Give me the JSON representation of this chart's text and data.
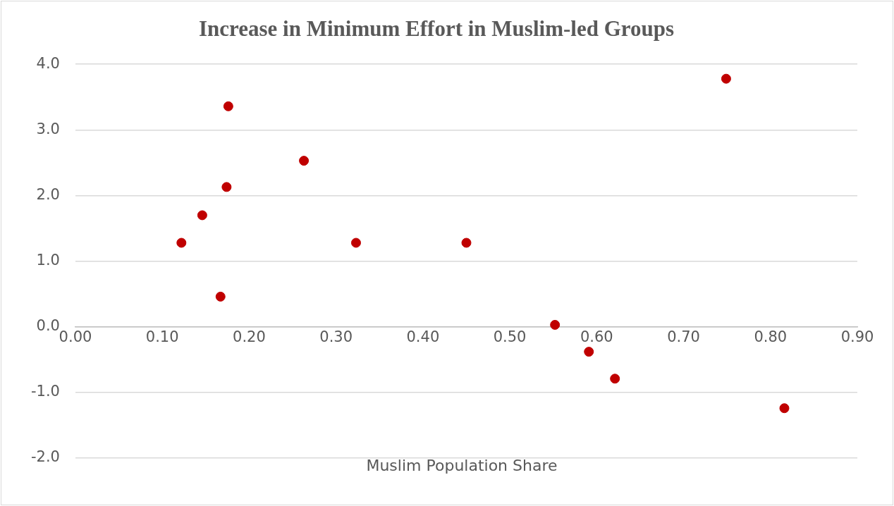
{
  "chart_data": {
    "type": "scatter",
    "title": "Increase in Minimum Effort in Muslim-led Groups",
    "xlabel": "Muslim Population Share",
    "x": [
      0.122,
      0.146,
      0.167,
      0.174,
      0.176,
      0.263,
      0.323,
      0.45,
      0.552,
      0.591,
      0.621,
      0.749,
      0.816
    ],
    "series": [
      {
        "color": "#c00000",
        "values": [
          1.28,
          1.7,
          0.46,
          2.13,
          3.36,
          2.53,
          1.28,
          1.28,
          0.03,
          -0.38,
          -0.79,
          3.78,
          -1.24
        ]
      }
    ],
    "xlim": [
      0,
      0.9
    ],
    "xticks": [
      {
        "value": 0,
        "label": "0.00"
      },
      {
        "value": 0.1,
        "label": "0.10"
      },
      {
        "value": 0.2,
        "label": "0.20"
      },
      {
        "value": 0.3,
        "label": "0.30"
      },
      {
        "value": 0.4,
        "label": "0.40"
      },
      {
        "value": 0.5,
        "label": "0.50"
      },
      {
        "value": 0.6,
        "label": "0.60"
      },
      {
        "value": 0.7,
        "label": "0.70"
      },
      {
        "value": 0.8,
        "label": "0.80"
      },
      {
        "value": 0.9,
        "label": "0.90"
      }
    ],
    "ylim": [
      -2,
      4
    ],
    "yticks": [
      {
        "value": -2,
        "label": "-2.0"
      },
      {
        "value": -1,
        "label": "-1.0"
      },
      {
        "value": 0,
        "label": "0.0"
      },
      {
        "value": 1,
        "label": "1.0"
      },
      {
        "value": 2,
        "label": "2.0"
      },
      {
        "value": 3,
        "label": "3.0"
      },
      {
        "value": 4,
        "label": "4.0"
      }
    ],
    "grid": "y",
    "legend": false,
    "marker": "circle"
  }
}
